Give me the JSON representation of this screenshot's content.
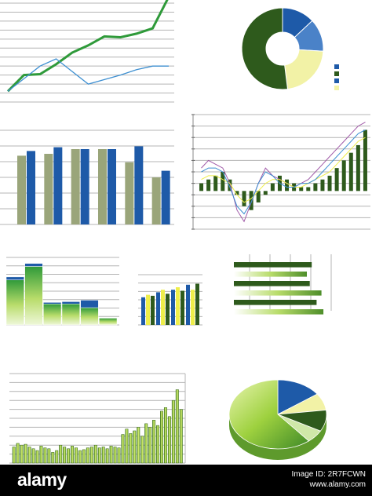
{
  "colors": {
    "dark_green": "#2e5a1c",
    "green": "#2f9a3a",
    "lime": "#9ed13f",
    "blue": "#1e5aa8",
    "light_blue": "#3d8fd1",
    "olive": "#9aa57a",
    "pale_yellow": "#f2f2a6",
    "yellow": "#eeee4a",
    "grid": "#b4b4b4",
    "purple": "#a05aa8"
  },
  "chart_data": [
    {
      "type": "line",
      "grid": true,
      "series": [
        {
          "color": "#2f9a3a",
          "values": [
            12,
            30,
            31,
            42,
            55,
            63,
            73,
            72,
            76,
            82,
            120
          ]
        },
        {
          "color": "#3d8fd1",
          "values": [
            12,
            26,
            40,
            48,
            34,
            20,
            25,
            30,
            36,
            40,
            40
          ]
        }
      ],
      "ylim": [
        0,
        110
      ]
    },
    {
      "type": "pie",
      "donut": true,
      "values": [
        13,
        13,
        22,
        52
      ],
      "colors": [
        "#1e5aa8",
        "#4a82c8",
        "#f2f2a6",
        "#2e5a1c"
      ]
    },
    {
      "type": "bar",
      "grid": true,
      "categories": [
        "",
        "",
        "",
        "",
        "",
        ""
      ],
      "series": [
        {
          "color": "#9aa57a",
          "values": [
            73,
            75,
            80,
            80,
            66,
            50
          ]
        },
        {
          "color": "#1e5aa8",
          "values": [
            78,
            82,
            80,
            80,
            83,
            57
          ]
        }
      ],
      "ylim": [
        0,
        100
      ]
    },
    {
      "type": "bar",
      "grid": true,
      "bar_color": "#2e5a1c",
      "values": [
        2,
        3,
        4,
        5,
        3,
        -1,
        -4,
        -5,
        -3,
        -1,
        2,
        4,
        3,
        2,
        1,
        1,
        2,
        3,
        4,
        6,
        8,
        10,
        12,
        16
      ],
      "lines": [
        {
          "color": "#a05aa8",
          "values": [
            6,
            8,
            7,
            6,
            2,
            -5,
            -8,
            -3,
            2,
            6,
            4,
            3,
            2,
            1,
            2,
            3,
            5,
            7,
            9,
            11,
            13,
            15,
            17,
            18
          ]
        },
        {
          "color": "#eeee4a",
          "values": [
            3,
            4,
            4,
            3,
            2,
            -1,
            -3,
            -2,
            0,
            2,
            3,
            3,
            2,
            1,
            1,
            2,
            3,
            4,
            5,
            7,
            9,
            11,
            13,
            14
          ]
        },
        {
          "color": "#3d8fd1",
          "values": [
            5,
            6,
            6,
            5,
            1,
            -4,
            -6,
            -3,
            2,
            5,
            4,
            2,
            1,
            1,
            2,
            2,
            3,
            5,
            7,
            9,
            11,
            13,
            15,
            16
          ]
        }
      ],
      "ylim": [
        -10,
        20
      ]
    },
    {
      "type": "bar",
      "grid": true,
      "stacked": true,
      "series": [
        {
          "color": "#b8dc6a",
          "values": [
            60,
            78,
            28,
            28,
            23,
            9
          ]
        },
        {
          "color": "#1e5aa8",
          "values": [
            4,
            4,
            2,
            3,
            10,
            0
          ]
        }
      ],
      "ylim": [
        0,
        90
      ]
    },
    {
      "type": "bar",
      "grid": true,
      "series": [
        {
          "color": "#1e5aa8",
          "values": [
            55,
            65,
            70,
            80
          ]
        },
        {
          "color": "#eeee4a",
          "values": [
            60,
            70,
            75,
            70
          ]
        },
        {
          "color": "#2e5a1c",
          "values": [
            58,
            62,
            68,
            82
          ]
        }
      ],
      "ylim": [
        0,
        100
      ]
    },
    {
      "type": "bar",
      "orientation": "horizontal",
      "grid": true,
      "values": [
        80,
        75,
        78,
        90,
        85,
        92
      ],
      "colors": [
        "#2e5a1c",
        "#b8dc6a",
        "#2e5a1c",
        "#b8dc6a",
        "#2e5a1c",
        "#b8dc6a"
      ],
      "xlim": [
        0,
        100
      ]
    },
    {
      "type": "bar",
      "grid": true,
      "bar_color": "#9ed13f",
      "values": [
        18,
        22,
        20,
        21,
        18,
        16,
        14,
        19,
        17,
        16,
        12,
        14,
        20,
        18,
        16,
        19,
        17,
        14,
        15,
        17,
        18,
        20,
        17,
        18,
        16,
        19,
        18,
        17,
        32,
        38,
        33,
        36,
        40,
        30,
        44,
        40,
        48,
        42,
        58,
        62,
        52,
        70,
        82,
        60
      ],
      "ylim": [
        0,
        100
      ]
    },
    {
      "type": "pie",
      "3d": true,
      "values": [
        15,
        8,
        10,
        6,
        61
      ],
      "colors": [
        "#1e5aa8",
        "#f2f2a6",
        "#2e5a1c",
        "#cfe8a8",
        "#9ed13f"
      ]
    }
  ],
  "watermark": {
    "brand": "alamy",
    "image_id_label": "Image ID: 2R7FCWN",
    "site": "www.alamy.com"
  }
}
